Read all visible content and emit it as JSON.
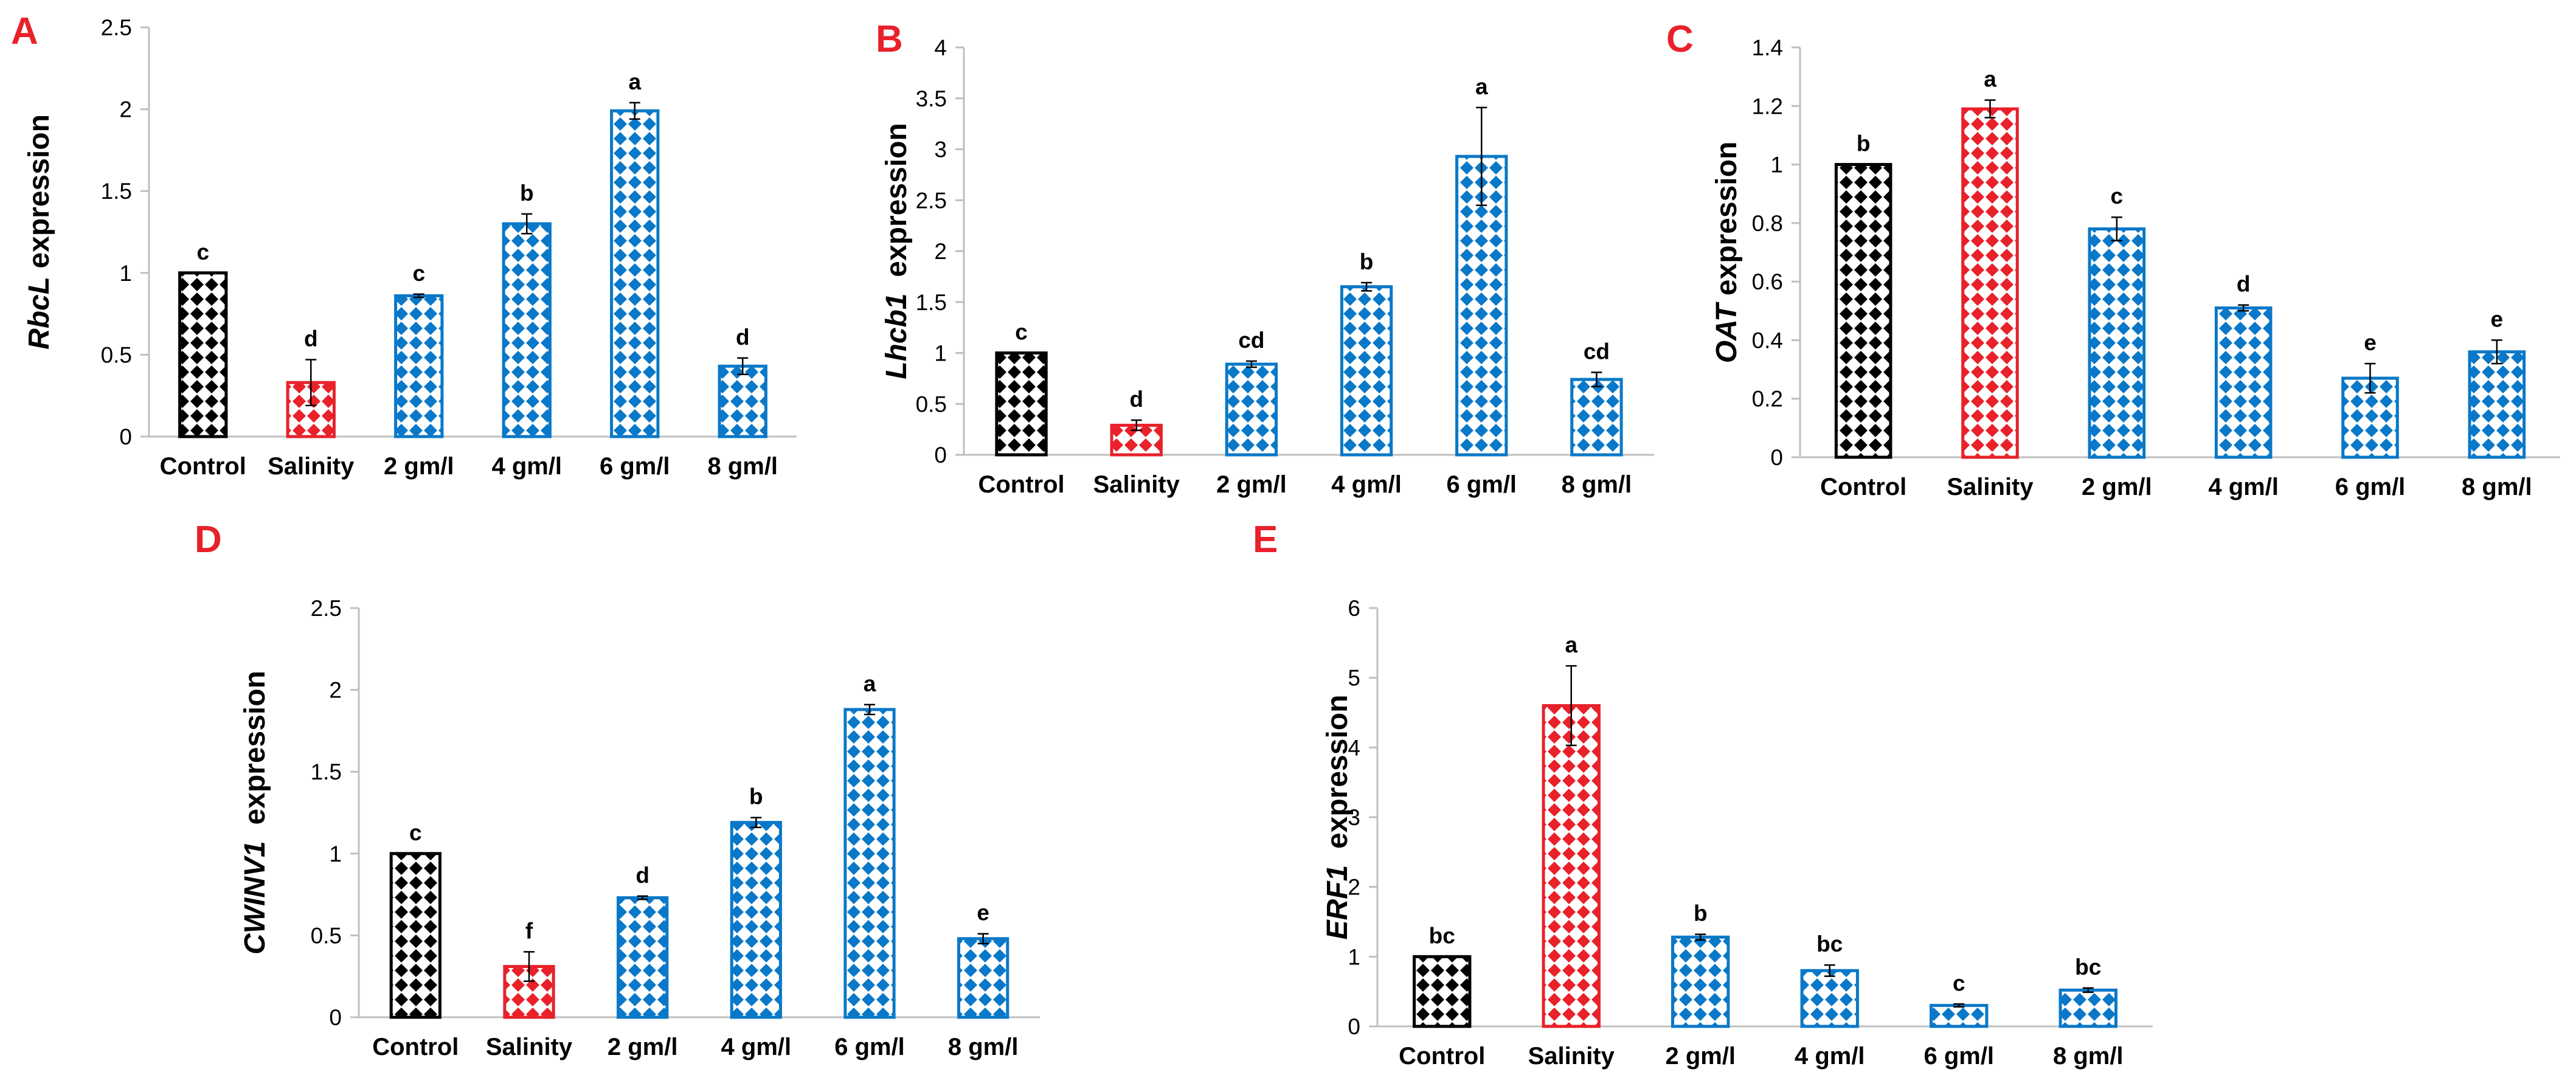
{
  "colors": {
    "control": "#000000",
    "salinity": "#e8212a",
    "treatment": "#0a78c8",
    "panel_label": "#e8212a"
  },
  "chart_data": [
    {
      "panel": "A",
      "type": "bar",
      "gene": "RbcL",
      "ylabel_suffix": " expression",
      "categories": [
        "Control",
        "Salinity",
        "2 gm/l",
        "4 gm/l",
        "6 gm/l",
        "8 gm/l"
      ],
      "values": [
        1.0,
        0.33,
        0.86,
        1.3,
        1.99,
        0.43
      ],
      "errors": [
        0.0,
        0.14,
        0.01,
        0.06,
        0.05,
        0.05
      ],
      "letters": [
        "c",
        "d",
        "c",
        "b",
        "a",
        "d"
      ],
      "ylim": [
        0,
        2.5
      ],
      "yticks": [
        "0",
        "0.5",
        "1",
        "1.5",
        "2",
        "2.5"
      ]
    },
    {
      "panel": "B",
      "type": "bar",
      "gene": "Lhcb1",
      "ylabel_suffix": "  expression",
      "categories": [
        "Control",
        "Salinity",
        "2 gm/l",
        "4 gm/l",
        "6 gm/l",
        "8 gm/l"
      ],
      "values": [
        1.0,
        0.29,
        0.89,
        1.65,
        2.93,
        0.74
      ],
      "errors": [
        0.0,
        0.05,
        0.03,
        0.04,
        0.48,
        0.07
      ],
      "letters": [
        "c",
        "d",
        "cd",
        "b",
        "a",
        "cd"
      ],
      "ylim": [
        0,
        4
      ],
      "yticks": [
        "0",
        "0.5",
        "1",
        "1.5",
        "2",
        "2.5",
        "3",
        "3.5",
        "4"
      ]
    },
    {
      "panel": "C",
      "type": "bar",
      "gene": "OAT",
      "ylabel_suffix": " expression",
      "categories": [
        "Control",
        "Salinity",
        "2 gm/l",
        "4 gm/l",
        "6 gm/l",
        "8 gm/l"
      ],
      "values": [
        1.0,
        1.19,
        0.78,
        0.51,
        0.27,
        0.36
      ],
      "errors": [
        0.0,
        0.03,
        0.04,
        0.01,
        0.05,
        0.04
      ],
      "letters": [
        "b",
        "a",
        "c",
        "d",
        "e",
        "e"
      ],
      "ylim": [
        0,
        1.4
      ],
      "yticks": [
        "0",
        "0.2",
        "0.4",
        "0.6",
        "0.8",
        "1",
        "1.2",
        "1.4"
      ]
    },
    {
      "panel": "D",
      "type": "bar",
      "gene": "CWINV1",
      "ylabel_suffix": "  expression",
      "categories": [
        "Control",
        "Salinity",
        "2 gm/l",
        "4 gm/l",
        "6 gm/l",
        "8 gm/l"
      ],
      "values": [
        1.0,
        0.31,
        0.73,
        1.19,
        1.88,
        0.48
      ],
      "errors": [
        0.0,
        0.09,
        0.01,
        0.03,
        0.03,
        0.03
      ],
      "letters": [
        "c",
        "f",
        "d",
        "b",
        "a",
        "e"
      ],
      "ylim": [
        0,
        2.5
      ],
      "yticks": [
        "0",
        "0.5",
        "1",
        "1.5",
        "2",
        "2.5"
      ]
    },
    {
      "panel": "E",
      "type": "bar",
      "gene": "ERF1",
      "ylabel_suffix": "  expression",
      "categories": [
        "Control",
        "Salinity",
        "2 gm/l",
        "4 gm/l",
        "6 gm/l",
        "8 gm/l"
      ],
      "values": [
        1.0,
        4.6,
        1.28,
        0.8,
        0.3,
        0.52
      ],
      "errors": [
        0.0,
        0.57,
        0.04,
        0.08,
        0.02,
        0.03
      ],
      "letters": [
        "bc",
        "a",
        "b",
        "bc",
        "c",
        "bc"
      ],
      "ylim": [
        0,
        6
      ],
      "yticks": [
        "0",
        "1",
        "2",
        "3",
        "4",
        "5",
        "6"
      ]
    }
  ]
}
